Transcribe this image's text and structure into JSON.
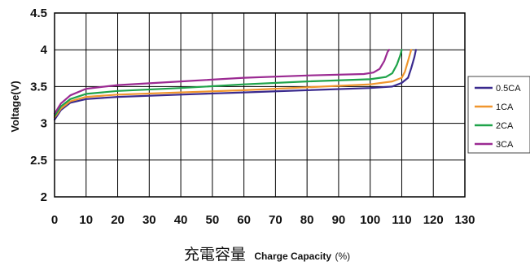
{
  "chart_data": {
    "type": "line",
    "xlabel_cjk": "充電容量",
    "xlabel": "Charge Capacity",
    "xlabel_unit": "(%)",
    "ylabel": "Voltage(V)",
    "xlim": [
      0,
      130
    ],
    "ylim": [
      2,
      4.5
    ],
    "x_ticks": [
      0,
      10,
      20,
      30,
      40,
      50,
      60,
      70,
      80,
      90,
      100,
      110,
      120,
      130
    ],
    "y_ticks": [
      2,
      2.5,
      3,
      3.5,
      4,
      4.5
    ],
    "grid": true,
    "legend_position": "right",
    "series": [
      {
        "name": "0.5CA",
        "color": "#3a2a8e",
        "points": [
          [
            0,
            3.05
          ],
          [
            2,
            3.18
          ],
          [
            5,
            3.28
          ],
          [
            10,
            3.33
          ],
          [
            20,
            3.36
          ],
          [
            40,
            3.39
          ],
          [
            60,
            3.42
          ],
          [
            80,
            3.45
          ],
          [
            100,
            3.48
          ],
          [
            107,
            3.5
          ],
          [
            110,
            3.55
          ],
          [
            112,
            3.62
          ],
          [
            113,
            3.75
          ],
          [
            114,
            3.9
          ],
          [
            114.5,
            4.0
          ]
        ]
      },
      {
        "name": "1CA",
        "color": "#f0962e",
        "points": [
          [
            0,
            3.08
          ],
          [
            2,
            3.2
          ],
          [
            5,
            3.3
          ],
          [
            10,
            3.36
          ],
          [
            20,
            3.39
          ],
          [
            40,
            3.42
          ],
          [
            60,
            3.45
          ],
          [
            80,
            3.49
          ],
          [
            100,
            3.53
          ],
          [
            107,
            3.57
          ],
          [
            110,
            3.62
          ],
          [
            111,
            3.7
          ],
          [
            112,
            3.85
          ],
          [
            113,
            4.0
          ]
        ]
      },
      {
        "name": "2CA",
        "color": "#1fa34a",
        "points": [
          [
            0,
            3.1
          ],
          [
            2,
            3.23
          ],
          [
            5,
            3.33
          ],
          [
            10,
            3.4
          ],
          [
            20,
            3.44
          ],
          [
            40,
            3.48
          ],
          [
            60,
            3.53
          ],
          [
            80,
            3.57
          ],
          [
            100,
            3.6
          ],
          [
            105,
            3.63
          ],
          [
            107,
            3.68
          ],
          [
            108.5,
            3.8
          ],
          [
            109.5,
            3.92
          ],
          [
            110,
            4.0
          ]
        ]
      },
      {
        "name": "3CA",
        "color": "#9b2a92",
        "points": [
          [
            0,
            3.13
          ],
          [
            2,
            3.27
          ],
          [
            5,
            3.38
          ],
          [
            10,
            3.47
          ],
          [
            20,
            3.52
          ],
          [
            40,
            3.57
          ],
          [
            60,
            3.62
          ],
          [
            80,
            3.65
          ],
          [
            98,
            3.67
          ],
          [
            101,
            3.69
          ],
          [
            103,
            3.74
          ],
          [
            104.5,
            3.85
          ],
          [
            105.5,
            3.97
          ],
          [
            106,
            4.0
          ]
        ]
      }
    ]
  }
}
